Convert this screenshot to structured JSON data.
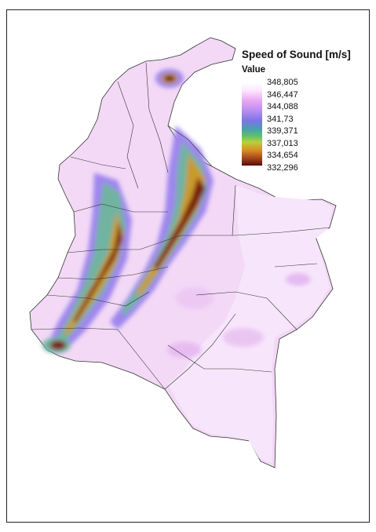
{
  "legend": {
    "title": "Speed of Sound [m/s]",
    "value_label": "Value",
    "entries": [
      "348,805",
      "346,447",
      "344,088",
      "341,73",
      "339,371",
      "337,013",
      "334,654",
      "332,296"
    ]
  },
  "colors": {
    "high": "#ffffff",
    "mid_high": "#e8a7f2",
    "mid": "#7d74e6",
    "mid_low": "#59c06d",
    "low": "#5a0a08"
  }
}
